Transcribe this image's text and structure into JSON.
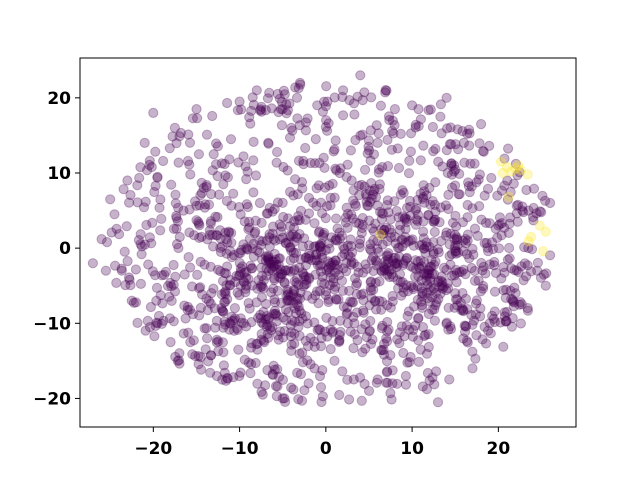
{
  "chart_data": {
    "type": "scatter",
    "title": "",
    "xlabel": "",
    "ylabel": "",
    "xlim": [
      -28.5,
      29.0
    ],
    "ylim": [
      -23.8,
      25.3
    ],
    "xticks": [
      -20,
      -10,
      0,
      10,
      20
    ],
    "yticks": [
      -20,
      -10,
      0,
      10,
      20
    ],
    "grid": false,
    "legend": "none",
    "marker_alpha": 0.3,
    "colors": {
      "purple": "#440154",
      "yellow": "#fde725"
    },
    "series": [
      {
        "color_key": "yellow",
        "points": [
          [
            20.3,
            11.5
          ],
          [
            21.0,
            10.8
          ],
          [
            21.5,
            10.2
          ],
          [
            22.0,
            10.6
          ],
          [
            22.6,
            10.4
          ],
          [
            23.4,
            9.8
          ],
          [
            21.2,
            6.8
          ],
          [
            23.8,
            1.5
          ],
          [
            23.5,
            0.9
          ],
          [
            24.8,
            3.0
          ],
          [
            25.5,
            2.2
          ],
          [
            25.2,
            -0.4
          ],
          [
            6.3,
            1.8
          ],
          [
            20.5,
            10.0
          ],
          [
            22.3,
            11.0
          ]
        ]
      }
    ],
    "purple_cloud_summary": "approximately 1500 purple points filling an ellipse roughly x in [-27, 27], y in [-22, 23], denser around (-6,-4) and (10,-2)",
    "purple_points_sample": [
      [
        -27.0,
        -2.0
      ],
      [
        -25.5,
        -3.0
      ],
      [
        -26.0,
        1.2
      ],
      [
        -25.0,
        6.5
      ],
      [
        -24.5,
        4.5
      ],
      [
        -23.0,
        9.0
      ],
      [
        -22.5,
        -7.0
      ],
      [
        -21.0,
        14.0
      ],
      [
        -20.0,
        18.0
      ],
      [
        -19.5,
        -10.0
      ],
      [
        -18.0,
        -12.5
      ],
      [
        -17.5,
        16.0
      ],
      [
        -16.5,
        5.0
      ],
      [
        -15.0,
        18.5
      ],
      [
        -14.5,
        -14.5
      ],
      [
        -13.0,
        12.5
      ],
      [
        -12.0,
        -17.5
      ],
      [
        -11.0,
        14.5
      ],
      [
        -10.0,
        19.5
      ],
      [
        -9.5,
        -10.0
      ],
      [
        -8.0,
        21.0
      ],
      [
        -7.0,
        -9.5
      ],
      [
        -6.0,
        -4.0
      ],
      [
        -5.0,
        -20.0
      ],
      [
        -4.0,
        16.0
      ],
      [
        -3.0,
        22.0
      ],
      [
        -2.0,
        -18.0
      ],
      [
        -1.0,
        19.0
      ],
      [
        0.0,
        4.0
      ],
      [
        1.0,
        -15.0
      ],
      [
        2.0,
        21.0
      ],
      [
        3.0,
        9.0
      ],
      [
        4.0,
        23.0
      ],
      [
        5.0,
        -19.0
      ],
      [
        6.0,
        14.0
      ],
      [
        7.0,
        -12.0
      ],
      [
        8.0,
        18.5
      ],
      [
        9.0,
        -2.0
      ],
      [
        10.0,
        19.0
      ],
      [
        11.0,
        -13.5
      ],
      [
        12.0,
        8.0
      ],
      [
        13.0,
        -20.5
      ],
      [
        14.0,
        20.0
      ],
      [
        15.0,
        -6.0
      ],
      [
        16.0,
        14.0
      ],
      [
        17.0,
        -16.0
      ],
      [
        18.0,
        16.5
      ],
      [
        19.0,
        -10.0
      ],
      [
        20.0,
        3.0
      ],
      [
        21.0,
        -8.5
      ],
      [
        22.0,
        -6.0
      ],
      [
        23.5,
        5.0
      ],
      [
        24.5,
        -3.0
      ],
      [
        26.0,
        6.0
      ],
      [
        25.5,
        -5.0
      ]
    ]
  }
}
